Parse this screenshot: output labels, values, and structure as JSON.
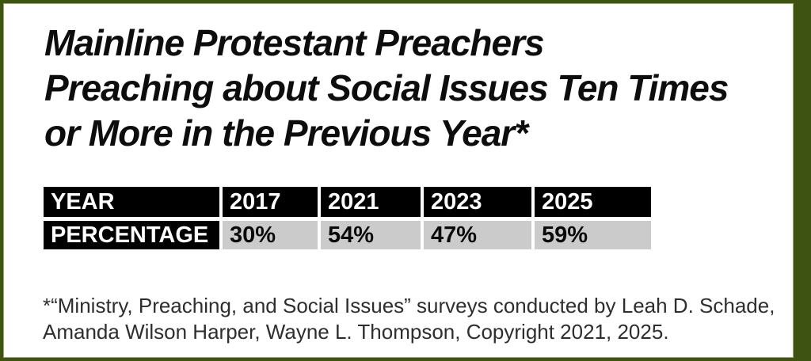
{
  "frame": {
    "border_color": "#3e5212",
    "background": "#ffffff"
  },
  "title": {
    "full_text": "Mainline Protestant Preachers Preaching about Social Issues Ten Times or More in the Previous Year*",
    "lines": [
      "Mainline Protestant Preachers",
      "Preaching about Social Issues Ten Times",
      "or More in the Previous Year*"
    ]
  },
  "table": {
    "row_headers": [
      "YEAR",
      "PERCENTAGE"
    ],
    "years": [
      "2017",
      "2021",
      "2023",
      "2025"
    ],
    "percentages": [
      "30%",
      "54%",
      "47%",
      "59%"
    ],
    "header_bg": "#000000",
    "header_text_color": "#ffffff",
    "value_bg": "#cbcbcb",
    "value_text_color": "#000000"
  },
  "footnote": {
    "full_text": "*“Ministry, Preaching, and Social Issues” surveys conducted by Leah D. Schade, Amanda Wilson Harper, Wayne L. Thompson, Copyright 2021, 2025.",
    "lines": [
      "*“Ministry, Preaching, and Social Issues” surveys conducted by Leah D. Schade,",
      "Amanda Wilson Harper, Wayne L. Thompson, Copyright 2021, 2025."
    ]
  },
  "chart_data": {
    "type": "table",
    "title": "Mainline Protestant Preachers Preaching about Social Issues Ten Times or More in the Previous Year*",
    "row_labels": [
      "YEAR",
      "PERCENTAGE"
    ],
    "categories": [
      "2017",
      "2021",
      "2023",
      "2025"
    ],
    "values": [
      30,
      54,
      47,
      59
    ],
    "value_unit": "percent",
    "source_note": "*“Ministry, Preaching, and Social Issues” surveys conducted by Leah D. Schade, Amanda Wilson Harper, Wayne L. Thompson, Copyright 2021, 2025."
  }
}
